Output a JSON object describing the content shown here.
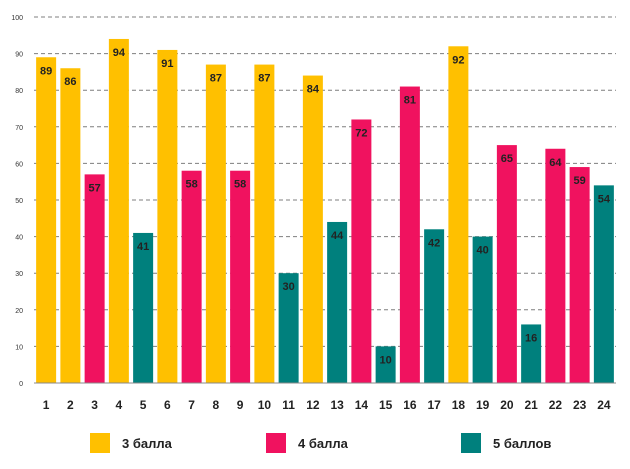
{
  "chart_data": {
    "type": "bar",
    "title": "",
    "xlabel": "",
    "ylabel": "",
    "ylim": [
      0,
      100
    ],
    "yticks": [
      0,
      10,
      20,
      30,
      40,
      50,
      60,
      70,
      80,
      90,
      100
    ],
    "grid": true,
    "categories": [
      "1",
      "2",
      "3",
      "4",
      "5",
      "6",
      "7",
      "8",
      "9",
      "10",
      "11",
      "12",
      "13",
      "14",
      "15",
      "16",
      "17",
      "18",
      "19",
      "20",
      "21",
      "22",
      "23",
      "24"
    ],
    "values": [
      89,
      86,
      57,
      94,
      41,
      91,
      58,
      87,
      58,
      87,
      30,
      84,
      44,
      72,
      10,
      81,
      42,
      92,
      40,
      65,
      16,
      64,
      59,
      54
    ],
    "groups": [
      "3",
      "3",
      "4",
      "3",
      "5",
      "3",
      "4",
      "3",
      "4",
      "3",
      "5",
      "3",
      "5",
      "4",
      "5",
      "4",
      "5",
      "3",
      "5",
      "4",
      "5",
      "4",
      "4",
      "5"
    ],
    "legend": [
      {
        "key": "3",
        "label": "3 балла",
        "color": "#FFC000"
      },
      {
        "key": "4",
        "label": "4 балла",
        "color": "#F0125F"
      },
      {
        "key": "5",
        "label": "5 баллов",
        "color": "#00807D"
      }
    ]
  }
}
